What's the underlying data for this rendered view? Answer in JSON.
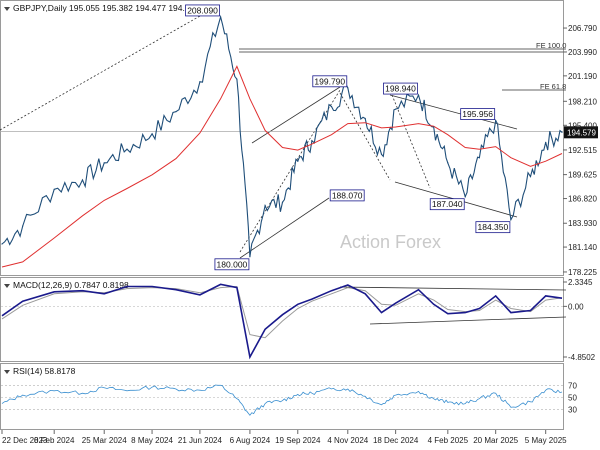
{
  "chart_data": [
    {
      "panel": "price",
      "type": "line",
      "header": "GBPJPY,Daily  195.055 195.382 194.477 194.579",
      "last_price_label": "194.579",
      "ylim": [
        178.22,
        208.2
      ],
      "y_ticks": [
        "206.790",
        "203.990",
        "201.190",
        "198.210",
        "195.400",
        "192.515",
        "189.625",
        "186.820",
        "183.930",
        "181.140",
        "178.225"
      ],
      "x_ticks": [
        "22 Dec 2023",
        "8 Feb 2024",
        "25 Mar 2024",
        "8 May 2024",
        "21 Jun 2024",
        "6 Aug 2024",
        "19 Sep 2024",
        "4 Nov 2024",
        "18 Dec 2024",
        "4 Feb 2025",
        "20 Mar 2025",
        "5 May 2025"
      ],
      "x": [
        "2023-12-22",
        "2024-01-10",
        "2024-02-08",
        "2024-03-05",
        "2024-03-25",
        "2024-04-15",
        "2024-05-08",
        "2024-05-30",
        "2024-06-21",
        "2024-07-10",
        "2024-07-25",
        "2024-08-06",
        "2024-08-20",
        "2024-09-05",
        "2024-09-19",
        "2024-10-02",
        "2024-10-20",
        "2024-11-04",
        "2024-11-20",
        "2024-12-05",
        "2024-12-18",
        "2025-01-08",
        "2025-01-22",
        "2025-02-04",
        "2025-02-20",
        "2025-03-05",
        "2025-03-20",
        "2025-04-03",
        "2025-04-21",
        "2025-05-05",
        "2025-05-20"
      ],
      "series": [
        {
          "values": [
            181.5,
            183.6,
            187.9,
            189.0,
            191.0,
            192.6,
            194.4,
            197.0,
            200.5,
            208.09,
            200.8,
            180.0,
            186.0,
            186.4,
            191.2,
            193.6,
            197.6,
            199.79,
            196.2,
            192.0,
            197.3,
            198.94,
            195.2,
            191.0,
            187.04,
            191.6,
            195.956,
            184.35,
            189.4,
            193.4,
            194.579
          ]
        },
        {
          "values": [
            178.8,
            179.4,
            182.2,
            184.8,
            186.6,
            188.0,
            189.6,
            191.5,
            194.5,
            198.5,
            202.3,
            198.5,
            194.8,
            192.8,
            192.5,
            193.2,
            194.3,
            195.6,
            195.7,
            195.1,
            195.2,
            195.6,
            195.3,
            194.3,
            192.8,
            192.6,
            192.9,
            191.6,
            190.6,
            191.2,
            192.1
          ]
        }
      ],
      "annotations": [
        "208.090",
        "199.790",
        "198.940",
        "195.956",
        "188.070",
        "187.040",
        "184.350",
        "180.000"
      ],
      "fe_labels": [
        "FE 100.0",
        "FE 61.8"
      ],
      "watermark": "Action Forex"
    },
    {
      "panel": "macd",
      "type": "line",
      "header": "MACD(12,26,9) 0.7847 0.8198",
      "y_ticks": [
        "2.3345",
        "0.00",
        "-4.8502"
      ],
      "ylim": [
        -4.8502,
        2.3345
      ],
      "series": [
        {
          "values": [
            -0.9,
            0.5,
            1.4,
            1.5,
            1.2,
            1.9,
            1.9,
            1.6,
            1.1,
            2.1,
            1.8,
            -4.85,
            -2.2,
            -0.8,
            0.2,
            0.7,
            1.5,
            2.05,
            1.2,
            -0.6,
            0.3,
            1.6,
            0.2,
            -0.7,
            -0.6,
            -0.2,
            1.0,
            -0.6,
            -0.4,
            1.0,
            0.78
          ]
        },
        {
          "values": [
            -1.2,
            0.1,
            1.2,
            1.4,
            1.3,
            1.7,
            1.8,
            1.7,
            1.3,
            1.8,
            1.9,
            -2.7,
            -3.0,
            -1.4,
            -0.2,
            0.5,
            1.2,
            1.8,
            1.5,
            0.2,
            0.1,
            1.2,
            0.6,
            -0.3,
            -0.5,
            -0.4,
            0.6,
            -0.2,
            -0.5,
            0.6,
            0.82
          ]
        }
      ]
    },
    {
      "panel": "rsi",
      "type": "line",
      "header": "RSI(14) 58.8178",
      "y_ticks": [
        "70",
        "50",
        "30"
      ],
      "ylim": [
        0,
        100
      ],
      "series": [
        {
          "values": [
            40,
            54,
            61,
            57,
            66,
            61,
            67,
            64,
            62,
            70,
            48,
            21,
            40,
            45,
            55,
            57,
            64,
            64,
            52,
            38,
            54,
            60,
            48,
            42,
            40,
            48,
            57,
            34,
            43,
            62,
            59
          ]
        }
      ]
    }
  ]
}
